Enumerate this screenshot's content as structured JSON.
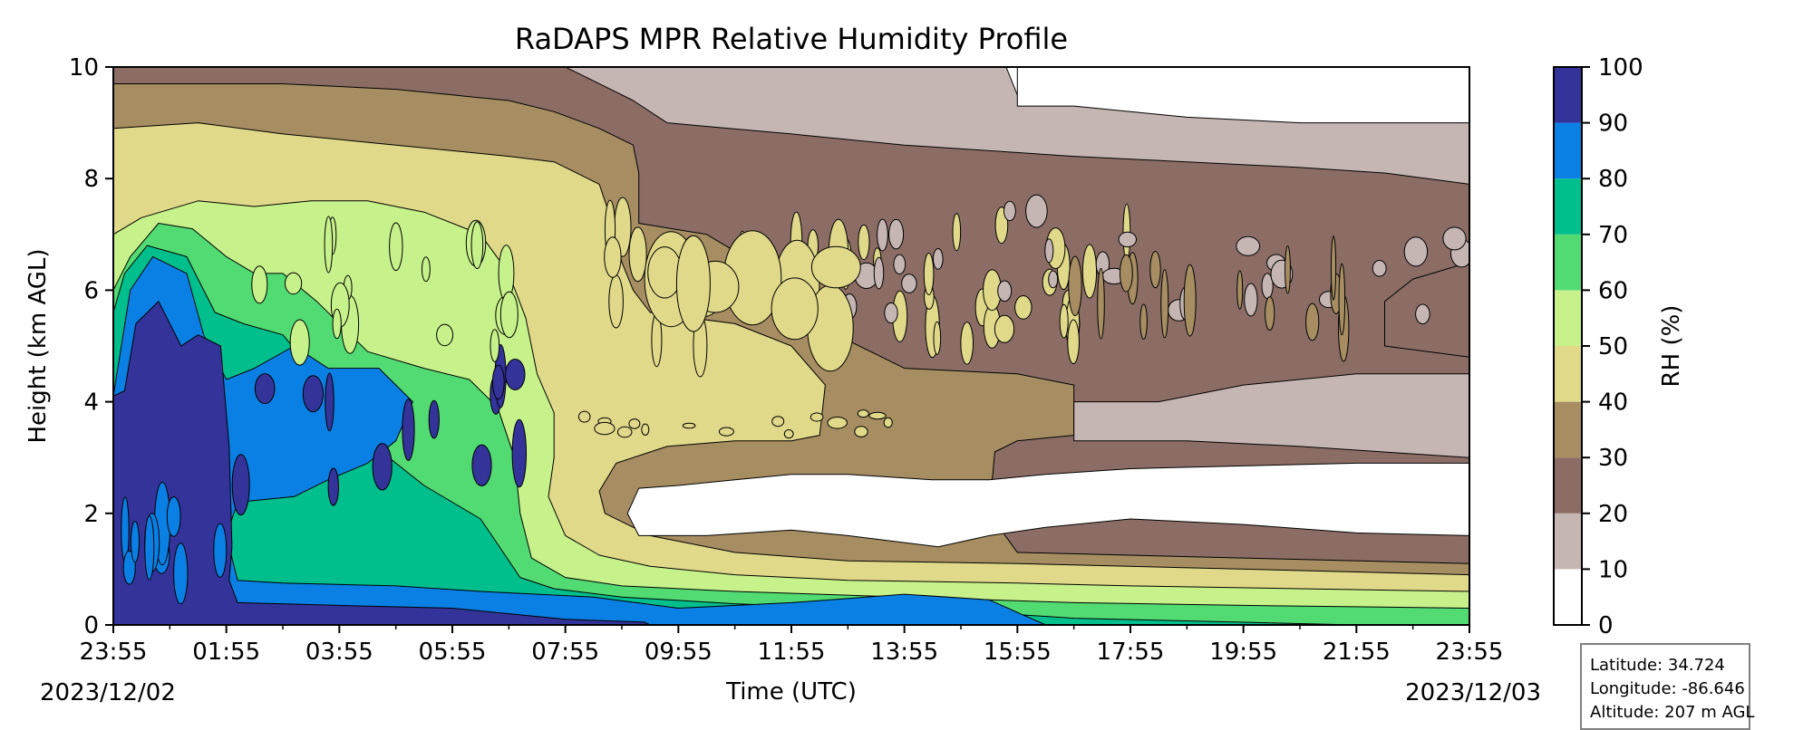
{
  "chart_data": {
    "type": "heatmap",
    "title": "RaDAPS MPR Relative Humidity Profile",
    "xlabel": "Time (UTC)",
    "ylabel": "Height (km AGL)",
    "x_ticks": [
      "23:55",
      "01:55",
      "03:55",
      "05:55",
      "07:55",
      "09:55",
      "11:55",
      "13:55",
      "15:55",
      "17:55",
      "19:55",
      "21:55",
      "23:55"
    ],
    "x_range_hours": [
      0,
      24
    ],
    "start_date": "2023/12/02",
    "end_date": "2023/12/03",
    "y_ticks": [
      "0",
      "2",
      "4",
      "6",
      "8",
      "10"
    ],
    "ylim": [
      0,
      10
    ],
    "colorbar": {
      "label": "RH (%)",
      "levels": [
        0,
        10,
        20,
        30,
        40,
        50,
        60,
        70,
        80,
        90,
        100
      ],
      "tick_labels": [
        "0",
        "10",
        "20",
        "30",
        "40",
        "50",
        "60",
        "70",
        "80",
        "90",
        "100"
      ],
      "colors": [
        "#ffffff",
        "#c5b6b3",
        "#8c6d66",
        "#a78d62",
        "#e0d98a",
        "#c7f28b",
        "#52db72",
        "#00bf8c",
        "#0a80e4",
        "#33339a"
      ]
    },
    "features": [
      {
        "region": "saturated layer 0-5.5 km",
        "time_range": [
          "23:55",
          "01:55"
        ],
        "rh_range": [
          90,
          100
        ]
      },
      {
        "region": "moist column 0-5 km",
        "time_range": [
          "01:55",
          "07:55"
        ],
        "rh_range": [
          70,
          90
        ]
      },
      {
        "region": "near-surface moist layer 0-1 km",
        "time_range": [
          "01:55",
          "15:55"
        ],
        "rh_range": [
          80,
          100
        ]
      },
      {
        "region": "dry layer 1.5-3 km",
        "time_range": [
          "08:55",
          "23:55"
        ],
        "rh_range": [
          0,
          10
        ]
      },
      {
        "region": "upper dry layer 7-10 km",
        "time_range": [
          "17:55",
          "23:55"
        ],
        "rh_range": [
          0,
          20
        ]
      },
      {
        "region": "mid-level layer 3-8 km",
        "time_range": [
          "08:55",
          "23:55"
        ],
        "rh_range": [
          20,
          50
        ]
      }
    ]
  },
  "info_box": {
    "latitude": "Latitude: 34.724",
    "longitude": "Longitude: -86.646",
    "altitude": "Altitude: 207 m AGL"
  }
}
